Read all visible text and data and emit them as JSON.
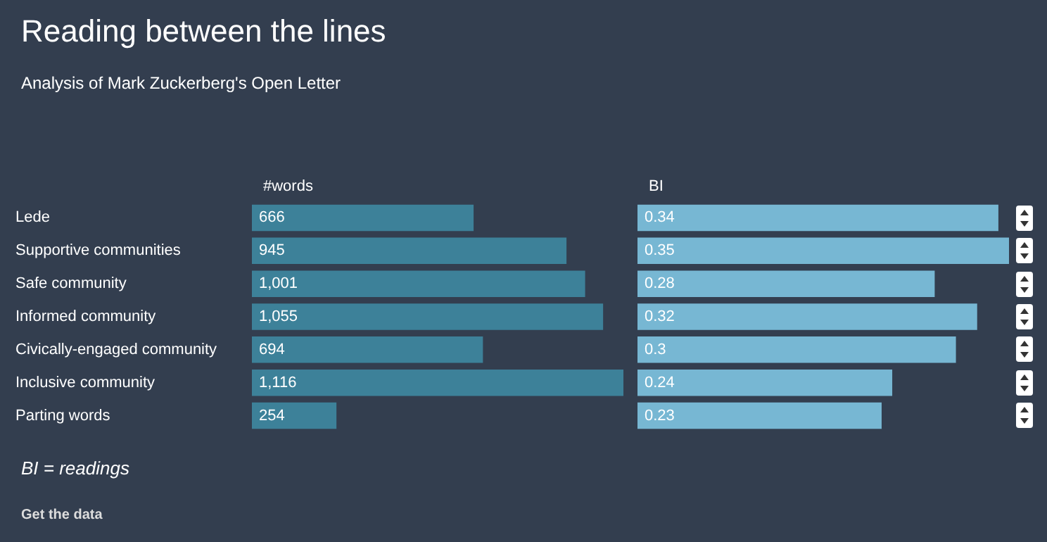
{
  "chart_data": [
    {
      "type": "bar",
      "orientation": "horizontal",
      "title": "Reading between the lines",
      "subtitle": "Analysis of Mark Zuckerberg's Open Letter",
      "xlabel": "#words",
      "categories": [
        "Lede",
        "Supportive communities",
        "Safe community",
        "Informed community",
        "Civically-engaged community",
        "Inclusive community",
        "Parting words"
      ],
      "values": [
        666,
        945,
        1001,
        1055,
        694,
        1116,
        254
      ],
      "color": "#3d8199",
      "value_labels": [
        "666",
        "945",
        "1,001",
        "1,055",
        "694",
        "1,116",
        "254"
      ],
      "annotations": [
        "BI = readings",
        "Get the data"
      ]
    },
    {
      "type": "bar",
      "orientation": "horizontal",
      "xlabel": "BI",
      "tick_labels": false,
      "categories": [
        null,
        null,
        null,
        null,
        null,
        null,
        null
      ],
      "values": [
        0.34,
        0.35,
        0.28,
        0.32,
        0.3,
        0.24,
        0.23
      ],
      "color": "#77b7d3",
      "data_labels": true
    }
  ]
}
